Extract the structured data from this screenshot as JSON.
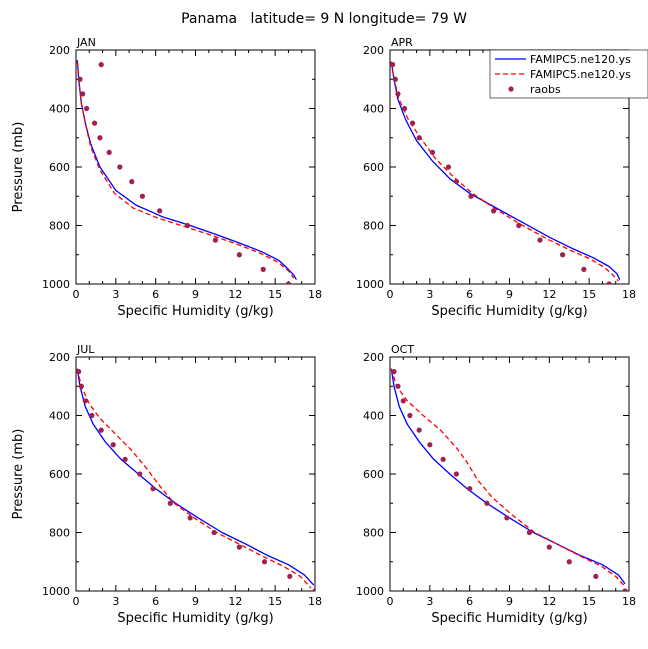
{
  "figure": {
    "title": "Panama   latitude= 9 N longitude= 79 W"
  },
  "chart_data": [
    {
      "type": "line",
      "panel": "JAN",
      "xlabel": "Specific Humidity (g/kg)",
      "ylabel": "Pressure (mb)",
      "xlim": [
        0,
        18
      ],
      "ylim": [
        1000,
        200
      ],
      "xticks": [
        0,
        3,
        6,
        9,
        12,
        15,
        18
      ],
      "yticks": [
        200,
        400,
        600,
        800,
        1000
      ],
      "series": [
        {
          "name": "FAMIPC5.ne120.ys",
          "color": "#0000ff",
          "dash": "solid",
          "x": [
            0.1,
            0.2,
            0.4,
            0.7,
            1.1,
            1.8,
            3.0,
            4.5,
            6.5,
            8.6,
            10.5,
            12.3,
            14.0,
            15.3,
            16.0,
            16.4,
            16.6
          ],
          "y": [
            235,
            300,
            380,
            450,
            520,
            600,
            680,
            730,
            770,
            800,
            830,
            860,
            890,
            920,
            950,
            970,
            985
          ]
        },
        {
          "name": "FAMIPC5.ne120.ys",
          "color": "#ff0000",
          "dash": "dashed",
          "x": [
            0.1,
            0.2,
            0.4,
            0.7,
            1.1,
            1.8,
            2.9,
            4.3,
            6.2,
            8.3,
            10.3,
            12.2,
            13.9,
            15.2,
            16.0,
            16.4
          ],
          "y": [
            240,
            300,
            380,
            450,
            530,
            610,
            690,
            740,
            775,
            805,
            835,
            865,
            895,
            925,
            955,
            980
          ]
        },
        {
          "name": "raobs",
          "color": "#a02050",
          "marker": "dot",
          "x": [
            1.9,
            0.3,
            0.5,
            0.8,
            1.4,
            1.8,
            2.5,
            3.3,
            4.2,
            5.0,
            6.3,
            8.4,
            10.5,
            12.3,
            14.1,
            16.0
          ],
          "y": [
            250,
            300,
            350,
            400,
            450,
            500,
            550,
            600,
            650,
            700,
            750,
            800,
            850,
            900,
            950,
            1000
          ]
        }
      ]
    },
    {
      "type": "line",
      "panel": "APR",
      "xlabel": "Specific Humidity (g/kg)",
      "ylabel": "",
      "xlim": [
        0,
        18
      ],
      "ylim": [
        1000,
        200
      ],
      "xticks": [
        0,
        3,
        6,
        9,
        12,
        15,
        18
      ],
      "yticks": [
        200,
        400,
        600,
        800,
        1000
      ],
      "series": [
        {
          "name": "FAMIPC5.ne120.ys",
          "color": "#0000ff",
          "dash": "solid",
          "x": [
            0.1,
            0.3,
            0.6,
            1.2,
            2.0,
            3.2,
            4.5,
            6.0,
            8.0,
            10.0,
            12.0,
            13.8,
            15.3,
            16.5,
            17.1,
            17.3
          ],
          "y": [
            240,
            300,
            370,
            440,
            510,
            580,
            640,
            690,
            740,
            790,
            840,
            880,
            910,
            940,
            965,
            985
          ]
        },
        {
          "name": "FAMIPC5.ne120.ys",
          "color": "#ff0000",
          "dash": "dashed",
          "x": [
            0.1,
            0.3,
            0.7,
            1.4,
            2.3,
            3.4,
            4.7,
            6.2,
            8.0,
            9.8,
            11.8,
            13.6,
            15.1,
            16.2,
            16.8,
            17.2
          ],
          "y": [
            240,
            300,
            370,
            440,
            500,
            570,
            630,
            690,
            745,
            795,
            845,
            885,
            915,
            945,
            970,
            990
          ]
        },
        {
          "name": "raobs",
          "color": "#a02050",
          "marker": "dot",
          "x": [
            0.2,
            0.4,
            0.6,
            1.1,
            1.7,
            2.2,
            3.2,
            4.4,
            5.0,
            6.1,
            7.8,
            9.7,
            11.3,
            13.0,
            14.6,
            16.5
          ],
          "y": [
            250,
            300,
            350,
            400,
            450,
            500,
            550,
            600,
            650,
            700,
            750,
            800,
            850,
            900,
            950,
            1000
          ]
        }
      ]
    },
    {
      "type": "line",
      "panel": "JUL",
      "xlabel": "Specific Humidity (g/kg)",
      "ylabel": "Pressure (mb)",
      "xlim": [
        0,
        18
      ],
      "ylim": [
        1000,
        200
      ],
      "xticks": [
        0,
        3,
        6,
        9,
        12,
        15,
        18
      ],
      "yticks": [
        200,
        400,
        600,
        800,
        1000
      ],
      "series": [
        {
          "name": "FAMIPC5.ne120.ys",
          "color": "#0000ff",
          "dash": "solid",
          "x": [
            0.1,
            0.3,
            0.7,
            1.3,
            2.2,
            3.4,
            4.7,
            6.0,
            7.5,
            9.2,
            11.0,
            12.8,
            14.5,
            16.0,
            17.2,
            17.9
          ],
          "y": [
            240,
            300,
            370,
            430,
            490,
            550,
            600,
            650,
            700,
            750,
            800,
            840,
            880,
            910,
            945,
            980
          ]
        },
        {
          "name": "FAMIPC5.ne120.ys",
          "color": "#ff0000",
          "dash": "dashed",
          "x": [
            0.1,
            0.4,
            1.0,
            1.8,
            2.9,
            4.2,
            5.3,
            6.3,
            7.4,
            8.9,
            10.6,
            12.3,
            14.0,
            15.6,
            16.9,
            17.7
          ],
          "y": [
            240,
            300,
            360,
            410,
            460,
            520,
            580,
            640,
            700,
            750,
            800,
            840,
            880,
            915,
            950,
            990
          ]
        },
        {
          "name": "raobs",
          "color": "#a02050",
          "marker": "dot",
          "x": [
            0.2,
            0.4,
            0.7,
            1.2,
            1.9,
            2.8,
            3.7,
            4.8,
            5.8,
            7.1,
            8.6,
            10.4,
            12.3,
            14.2,
            16.1,
            18.0
          ],
          "y": [
            250,
            300,
            350,
            400,
            450,
            500,
            550,
            600,
            650,
            700,
            750,
            800,
            850,
            900,
            950,
            1000
          ]
        }
      ]
    },
    {
      "type": "line",
      "panel": "OCT",
      "xlabel": "Specific Humidity (g/kg)",
      "ylabel": "",
      "xlim": [
        0,
        18
      ],
      "ylim": [
        1000,
        200
      ],
      "xticks": [
        0,
        3,
        6,
        9,
        12,
        15,
        18
      ],
      "yticks": [
        200,
        400,
        600,
        800,
        1000
      ],
      "series": [
        {
          "name": "FAMIPC5.ne120.ys",
          "color": "#0000ff",
          "dash": "solid",
          "x": [
            0.1,
            0.3,
            0.7,
            1.3,
            2.2,
            3.3,
            4.5,
            5.8,
            7.3,
            9.0,
            10.8,
            12.6,
            14.4,
            16.0,
            17.2,
            17.7
          ],
          "y": [
            240,
            300,
            370,
            430,
            490,
            550,
            600,
            650,
            700,
            750,
            800,
            840,
            880,
            910,
            945,
            975
          ]
        },
        {
          "name": "FAMIPC5.ne120.ys",
          "color": "#ff0000",
          "dash": "dashed",
          "x": [
            0.1,
            0.5,
            1.3,
            2.5,
            3.8,
            5.0,
            5.8,
            6.6,
            7.7,
            9.2,
            10.9,
            12.6,
            14.3,
            15.9,
            17.0,
            17.6
          ],
          "y": [
            240,
            300,
            350,
            400,
            450,
            510,
            560,
            620,
            680,
            740,
            800,
            840,
            880,
            915,
            950,
            980
          ]
        },
        {
          "name": "raobs",
          "color": "#a02050",
          "marker": "dot",
          "x": [
            0.3,
            0.6,
            1.0,
            1.5,
            2.2,
            3.0,
            4.0,
            5.0,
            6.0,
            7.3,
            8.8,
            10.5,
            12.0,
            13.5,
            15.5,
            17.7
          ],
          "y": [
            250,
            300,
            350,
            400,
            450,
            500,
            550,
            600,
            650,
            700,
            750,
            800,
            850,
            900,
            950,
            1000
          ]
        }
      ]
    }
  ],
  "legend": {
    "entries": [
      {
        "label": "FAMIPC5.ne120.ys",
        "color": "#0000ff",
        "dash": "solid"
      },
      {
        "label": "FAMIPC5.ne120.ys",
        "color": "#ff0000",
        "dash": "dashed"
      },
      {
        "label": "raobs",
        "color": "#a02050",
        "marker": "dot"
      }
    ]
  }
}
